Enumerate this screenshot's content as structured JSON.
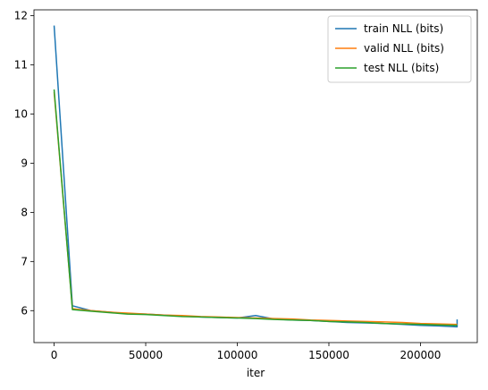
{
  "chart_data": {
    "type": "line",
    "title": "",
    "xlabel": "iter",
    "ylabel": "",
    "xlim": [
      -11000,
      231000
    ],
    "ylim": [
      5.35,
      12.12
    ],
    "x_ticks": [
      0,
      50000,
      100000,
      150000,
      200000
    ],
    "x_tick_labels": [
      "0",
      "50000",
      "100000",
      "150000",
      "200000"
    ],
    "y_ticks": [
      6,
      7,
      8,
      9,
      10,
      11,
      12
    ],
    "y_tick_labels": [
      "6",
      "7",
      "8",
      "9",
      "10",
      "11",
      "12"
    ],
    "grid": false,
    "legend_position": "top-right",
    "series": [
      {
        "name": "train NLL (bits)",
        "color": "#1f77b4",
        "x": [
          0,
          10000,
          20000,
          30000,
          40000,
          50000,
          60000,
          70000,
          80000,
          90000,
          100000,
          110000,
          120000,
          130000,
          140000,
          150000,
          160000,
          170000,
          180000,
          190000,
          200000,
          210000,
          220000,
          220000
        ],
        "y": [
          11.8,
          6.1,
          6.0,
          5.97,
          5.94,
          5.93,
          5.91,
          5.89,
          5.87,
          5.86,
          5.85,
          5.9,
          5.83,
          5.81,
          5.8,
          5.78,
          5.76,
          5.75,
          5.74,
          5.72,
          5.7,
          5.69,
          5.67,
          5.82
        ]
      },
      {
        "name": "valid NLL (bits)",
        "color": "#ff7f0e",
        "x": [
          0,
          10000,
          20000,
          30000,
          40000,
          50000,
          60000,
          70000,
          80000,
          90000,
          100000,
          110000,
          120000,
          130000,
          140000,
          150000,
          160000,
          170000,
          180000,
          190000,
          200000,
          210000,
          220000
        ],
        "y": [
          10.45,
          6.04,
          6.0,
          5.97,
          5.95,
          5.93,
          5.91,
          5.9,
          5.88,
          5.87,
          5.86,
          5.85,
          5.84,
          5.83,
          5.81,
          5.8,
          5.79,
          5.78,
          5.77,
          5.76,
          5.74,
          5.73,
          5.72
        ]
      },
      {
        "name": "test NLL (bits)",
        "color": "#2ca02c",
        "x": [
          0,
          10000,
          20000,
          30000,
          40000,
          50000,
          60000,
          70000,
          80000,
          90000,
          100000,
          110000,
          120000,
          130000,
          140000,
          150000,
          160000,
          170000,
          180000,
          190000,
          200000,
          210000,
          220000
        ],
        "y": [
          10.5,
          6.02,
          5.99,
          5.96,
          5.93,
          5.92,
          5.9,
          5.88,
          5.87,
          5.86,
          5.85,
          5.84,
          5.82,
          5.81,
          5.8,
          5.78,
          5.77,
          5.76,
          5.74,
          5.73,
          5.72,
          5.71,
          5.7
        ]
      }
    ]
  }
}
